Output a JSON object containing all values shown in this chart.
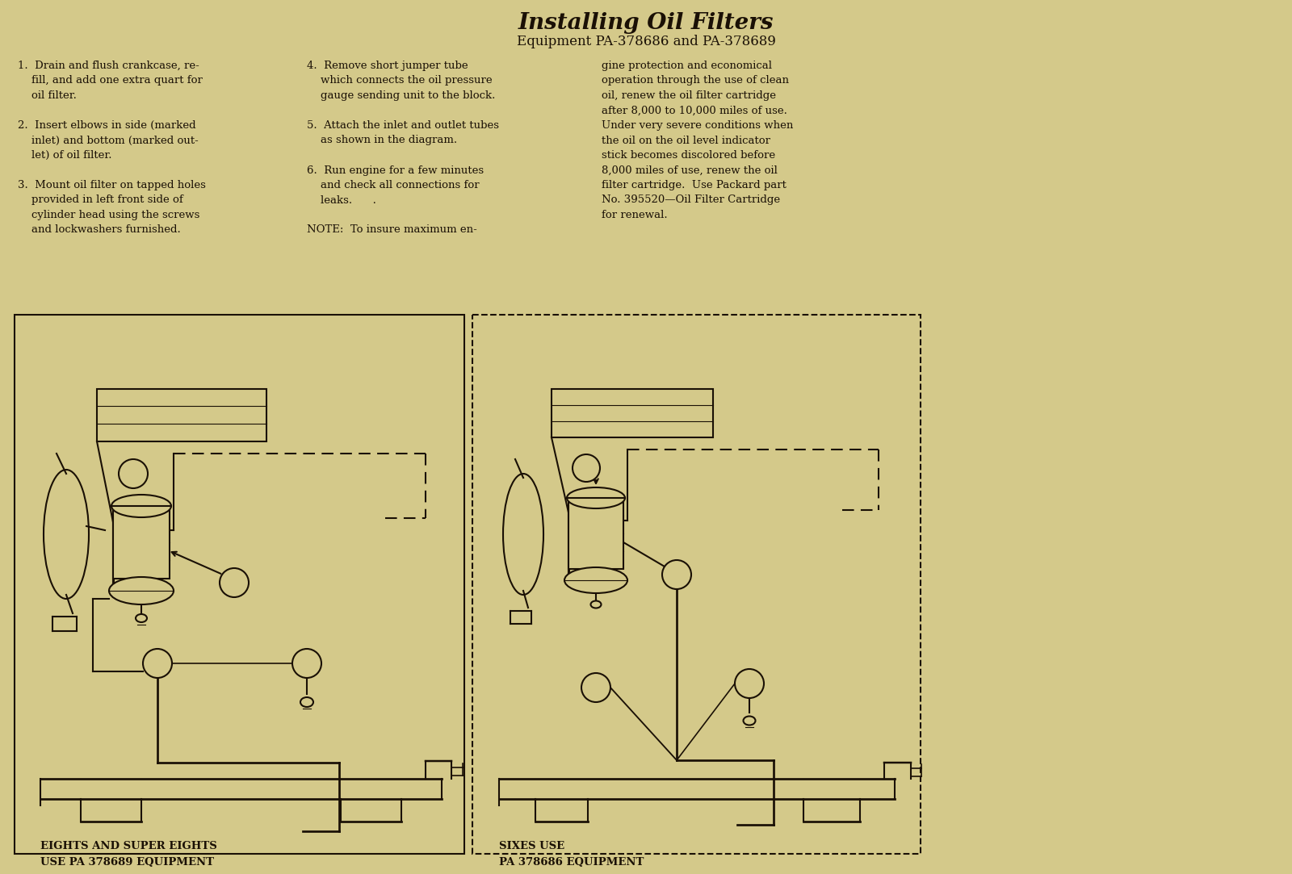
{
  "title": "Installing Oil Filters",
  "subtitle": "Equipment PA-378686 and PA-378689",
  "bg_color": "#d4c98a",
  "text_color": "#2a1f0a",
  "dark_color": "#1a1005",
  "title_fontsize": 20,
  "subtitle_fontsize": 12,
  "body_fontsize": 9.5,
  "col1_text": "1.  Drain and flush crankcase, re-\n    fill, and add one extra quart for\n    oil filter.\n\n2.  Insert elbows in side (marked\n    inlet) and bottom (marked out-\n    let) of oil filter.\n\n3.  Mount oil filter on tapped holes\n    provided in left front side of\n    cylinder head using the screws\n    and lockwashers furnished.",
  "col2_text": "4.  Remove short jumper tube\n    which connects the oil pressure\n    gauge sending unit to the block.\n\n5.  Attach the inlet and outlet tubes\n    as shown in the diagram.\n\n6.  Run engine for a few minutes\n    and check all connections for\n    leaks.      .\n\nNOTE:  To insure maximum en-",
  "col3_text": "gine protection and economical\noperation through the use of clean\noil, renew the oil filter cartridge\nafter 8,000 to 10,000 miles of use.\nUnder very severe conditions when\nthe oil on the oil level indicator\nstick becomes discolored before\n8,000 miles of use, renew the oil\nfilter cartridge.  Use Packard part\nNo. 395520—Oil Filter Cartridge\nfor renewal.",
  "left_label1": "EIGHTS AND SUPER EIGHTS",
  "left_label2": "USE PA 378689 EQUIPMENT",
  "right_label1": "SIXES USE",
  "right_label2": "PA 378686 EQUIPMENT",
  "line_color": "#1a1005",
  "lw": 1.5
}
